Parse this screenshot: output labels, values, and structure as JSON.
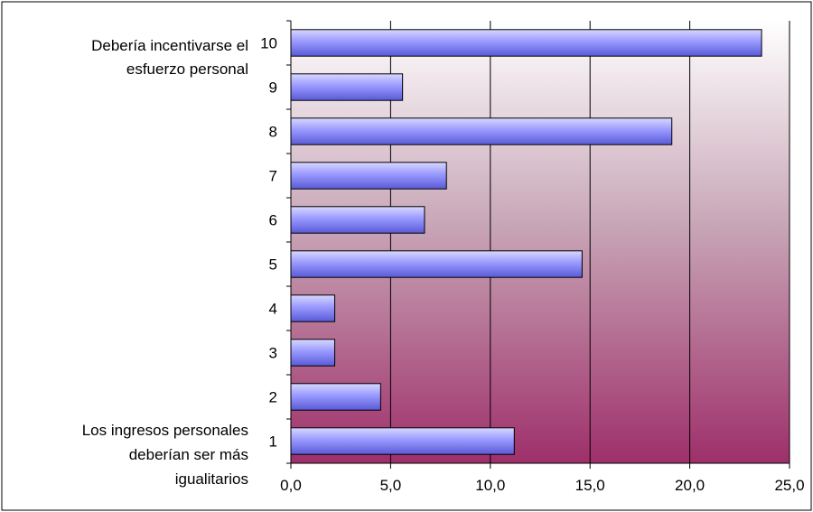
{
  "chart_data": {
    "type": "bar",
    "orientation": "horizontal",
    "categories": [
      "1",
      "2",
      "3",
      "4",
      "5",
      "6",
      "7",
      "8",
      "9",
      "10"
    ],
    "values": [
      11.2,
      4.5,
      2.2,
      2.2,
      14.6,
      6.7,
      7.8,
      19.1,
      5.6,
      23.6
    ],
    "x_ticks": [
      "0,0",
      "5,0",
      "10,0",
      "15,0",
      "20,0",
      "25,0"
    ],
    "xlim": [
      0,
      25
    ],
    "grid": "vertical",
    "end_labels": {
      "top": [
        "Debería incentivarse el",
        "esfuerzo personal"
      ],
      "bottom": [
        "Los ingresos personales",
        "deberían ser más",
        "igualitarios"
      ]
    },
    "colors": {
      "bar_light": "#d8d8ff",
      "bar_mid": "#9999ff",
      "bar_dark": "#5a5ad6",
      "bar_outline": "#000000",
      "plot_bg_top": "#ffffff",
      "plot_bg_mid": "#c9a8b8",
      "plot_bg_bottom": "#9e2f6a",
      "gridline": "#000000"
    }
  }
}
